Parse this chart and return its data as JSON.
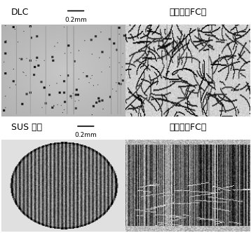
{
  "labels": {
    "top_left": "DLC",
    "top_right": "相手材（FC）",
    "bottom_left": "SUS 窒化",
    "bottom_right": "相手材（FC）"
  },
  "scale_bar_text": "0.2mm",
  "bg_color": "#ffffff",
  "border_color": "#000000",
  "label_bg": "#f2f2f2",
  "label_fontsize": 9,
  "scale_fontsize": 6.5
}
